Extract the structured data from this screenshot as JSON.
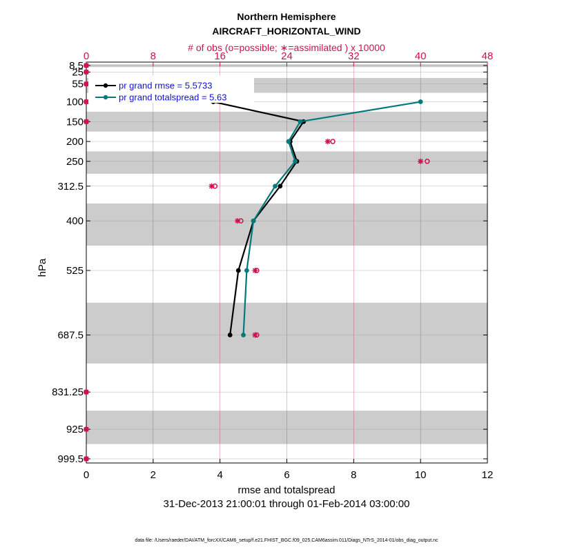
{
  "chart_data": {
    "type": "line",
    "title": "Northern Hemisphere",
    "subtitle": "AIRCRAFT_HORIZONTAL_WIND",
    "top_axis_label": "# of obs (o=possible; ∗=assimilated ) x 10000",
    "xlabel": "rmse and totalspread",
    "ylabel": "hPa",
    "date_range": "31-Dec-2013 21:00:01 through 01-Feb-2014 03:00:00",
    "footer": "data file: /Users/raeder/DAI/ATM_forcXX/CAM6_setup/f.e21.FHIST_BGC.f09_025.CAM6assim.011/Diags_NTrS_2014-01/obs_diag_output.nc",
    "xlim": [
      0,
      12
    ],
    "xticks": [
      0,
      2,
      4,
      6,
      8,
      10,
      12
    ],
    "top_xlim": [
      0,
      48
    ],
    "top_xticks": [
      0,
      8,
      16,
      24,
      32,
      40,
      48
    ],
    "levels": [
      8.5,
      25,
      55,
      100,
      150,
      200,
      250,
      312.5,
      400,
      525,
      687.5,
      831.25,
      925,
      999.5
    ],
    "level_labels": [
      "8.5",
      "25",
      "55",
      "100",
      "150",
      "200",
      "250",
      "312.5",
      "400",
      "525",
      "687.5",
      "831.25",
      "925",
      "999.5"
    ],
    "series": [
      {
        "name": "rmse",
        "legend": "pr grand rmse = 5.5733",
        "color": "#000000",
        "points": [
          [
            3.8,
            100
          ],
          [
            6.5,
            150
          ],
          [
            6.1,
            200
          ],
          [
            6.3,
            250
          ],
          [
            5.8,
            312.5
          ],
          [
            5.0,
            400
          ],
          [
            4.55,
            525
          ],
          [
            4.3,
            687.5
          ]
        ]
      },
      {
        "name": "totalspread",
        "legend": "pr grand totalspread = 5.63",
        "color": "#007a7a",
        "points": [
          [
            10.0,
            100
          ],
          [
            6.4,
            150
          ],
          [
            6.05,
            200
          ],
          [
            6.25,
            250
          ],
          [
            5.65,
            312.5
          ],
          [
            5.0,
            400
          ],
          [
            4.8,
            525
          ],
          [
            4.7,
            687.5
          ]
        ]
      }
    ],
    "obs_count": {
      "color": "#d0104c",
      "levels": [
        8.5,
        25,
        55,
        100,
        150,
        200,
        250,
        312.5,
        400,
        525,
        687.5,
        831.25,
        925,
        999.5
      ],
      "possible": [
        0,
        0,
        0,
        0,
        0,
        29.5,
        40.8,
        15.4,
        18.5,
        20.4,
        20.4,
        0,
        0,
        0
      ],
      "assimilated": [
        0,
        0,
        0,
        0,
        0,
        28.9,
        40.0,
        15.0,
        18.1,
        20.2,
        20.2,
        0,
        0,
        0
      ]
    }
  }
}
